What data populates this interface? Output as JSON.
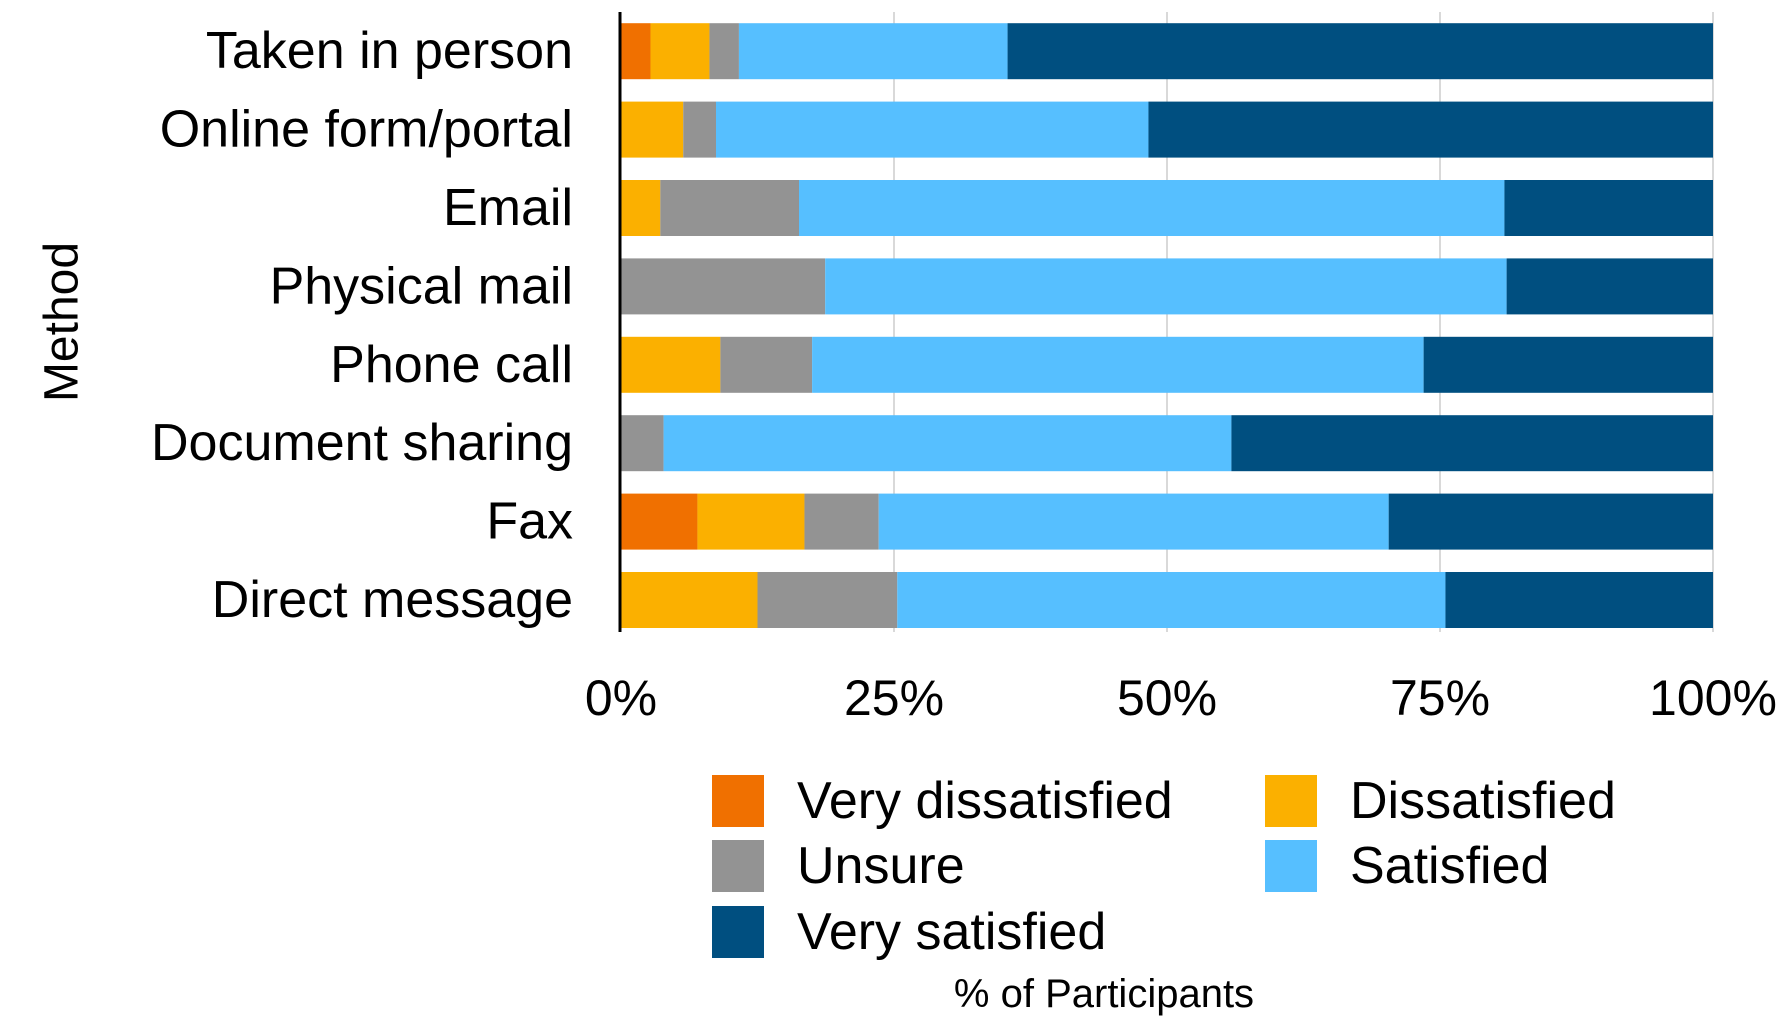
{
  "chart_data": {
    "type": "bar",
    "orientation": "horizontal",
    "stacked": true,
    "percent_stacked": true,
    "categories": [
      "Taken in person",
      "Online form/portal",
      "Email",
      "Physical mail",
      "Phone call",
      "Document sharing",
      "Fax",
      "Direct message"
    ],
    "series": [
      {
        "name": "Very dissatisfied",
        "color": "#f07000",
        "values": [
          2.7,
          0,
          0,
          0,
          0,
          0,
          7.0,
          0
        ]
      },
      {
        "name": "Dissatisfied",
        "color": "#fbb000",
        "values": [
          5.4,
          5.7,
          3.6,
          0,
          9.1,
          0,
          9.8,
          12.5
        ]
      },
      {
        "name": "Unsure",
        "color": "#939393",
        "values": [
          2.7,
          3.0,
          12.7,
          18.7,
          8.4,
          3.9,
          6.8,
          12.8
        ]
      },
      {
        "name": "Satisfied",
        "color": "#56bfff",
        "values": [
          24.6,
          39.6,
          64.6,
          62.4,
          56.0,
          52.0,
          46.7,
          50.2
        ]
      },
      {
        "name": "Very satisfied",
        "color": "#004f80",
        "values": [
          64.6,
          51.7,
          19.1,
          18.9,
          26.5,
          44.1,
          29.7,
          24.5
        ]
      }
    ],
    "xlabel": "% of Participants",
    "ylabel": "Method",
    "xlim": [
      0,
      100
    ],
    "xticks": [
      "0%",
      "25%",
      "50%",
      "75%",
      "100%"
    ],
    "grid": true,
    "legend_position": "bottom"
  }
}
